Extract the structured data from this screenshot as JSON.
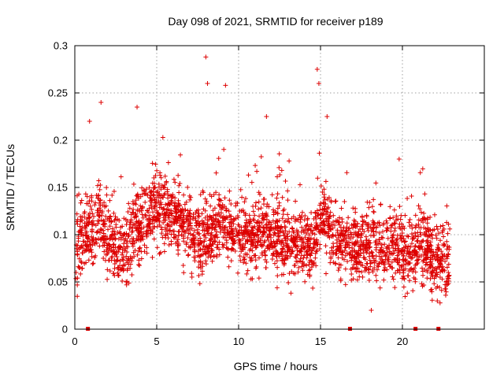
{
  "chart_data": {
    "type": "scatter",
    "title": "Day 098 of 2021, SRMTID for receiver p189",
    "xlabel": "GPS time / hours",
    "ylabel": "SRMTID / TECUs",
    "xlim": [
      0,
      25
    ],
    "ylim": [
      0,
      0.3
    ],
    "xticks": [
      0,
      5,
      10,
      15,
      20
    ],
    "xtick_labels": [
      "0",
      "5",
      "10",
      "15",
      "20"
    ],
    "yticks": [
      0,
      0.05,
      0.1,
      0.15,
      0.2,
      0.25,
      0.3
    ],
    "ytick_labels": [
      "0",
      "0.05",
      "0.1",
      "0.15",
      "0.2",
      "0.25",
      "0.3"
    ],
    "grid": true,
    "marker": "plus",
    "colors": {
      "series": "#dd0000",
      "grid": "#a0a0a0",
      "axis": "#000000"
    },
    "series": [
      {
        "name": "SRMTID",
        "x_range": [
          0.0,
          22.9
        ],
        "y_range": [
          0.02,
          0.29
        ],
        "approx_points": 2800
      }
    ],
    "envelope": {
      "x": [
        0,
        0.5,
        1,
        1.5,
        2,
        2.5,
        3,
        3.5,
        4,
        4.5,
        5,
        5.5,
        6,
        6.5,
        7,
        7.5,
        8,
        8.5,
        9,
        9.5,
        10,
        10.5,
        11,
        11.5,
        12,
        12.5,
        13,
        13.5,
        14,
        14.5,
        15,
        15.5,
        16,
        16.5,
        17,
        17.5,
        18,
        18.5,
        19,
        19.5,
        20,
        20.5,
        21,
        21.5,
        22,
        22.5,
        22.9
      ],
      "y": [
        0.07,
        0.1,
        0.1,
        0.12,
        0.09,
        0.085,
        0.08,
        0.1,
        0.11,
        0.12,
        0.13,
        0.125,
        0.115,
        0.11,
        0.1,
        0.095,
        0.1,
        0.105,
        0.11,
        0.105,
        0.1,
        0.1,
        0.1,
        0.105,
        0.1,
        0.095,
        0.095,
        0.09,
        0.085,
        0.09,
        0.12,
        0.11,
        0.095,
        0.09,
        0.085,
        0.09,
        0.085,
        0.085,
        0.09,
        0.09,
        0.08,
        0.075,
        0.095,
        0.085,
        0.07,
        0.075,
        0.08
      ]
    },
    "highlighted": [
      {
        "x": 0.9,
        "y": 0.22
      },
      {
        "x": 1.6,
        "y": 0.24
      },
      {
        "x": 3.8,
        "y": 0.235
      },
      {
        "x": 8.0,
        "y": 0.288
      },
      {
        "x": 8.1,
        "y": 0.26
      },
      {
        "x": 9.2,
        "y": 0.258
      },
      {
        "x": 11.7,
        "y": 0.225
      },
      {
        "x": 14.8,
        "y": 0.275
      },
      {
        "x": 14.9,
        "y": 0.26
      },
      {
        "x": 15.4,
        "y": 0.225
      },
      {
        "x": 18.1,
        "y": 0.02
      },
      {
        "x": 19.8,
        "y": 0.18
      }
    ],
    "gap_markers_x": [
      0.8,
      16.8,
      20.8,
      22.2
    ]
  }
}
